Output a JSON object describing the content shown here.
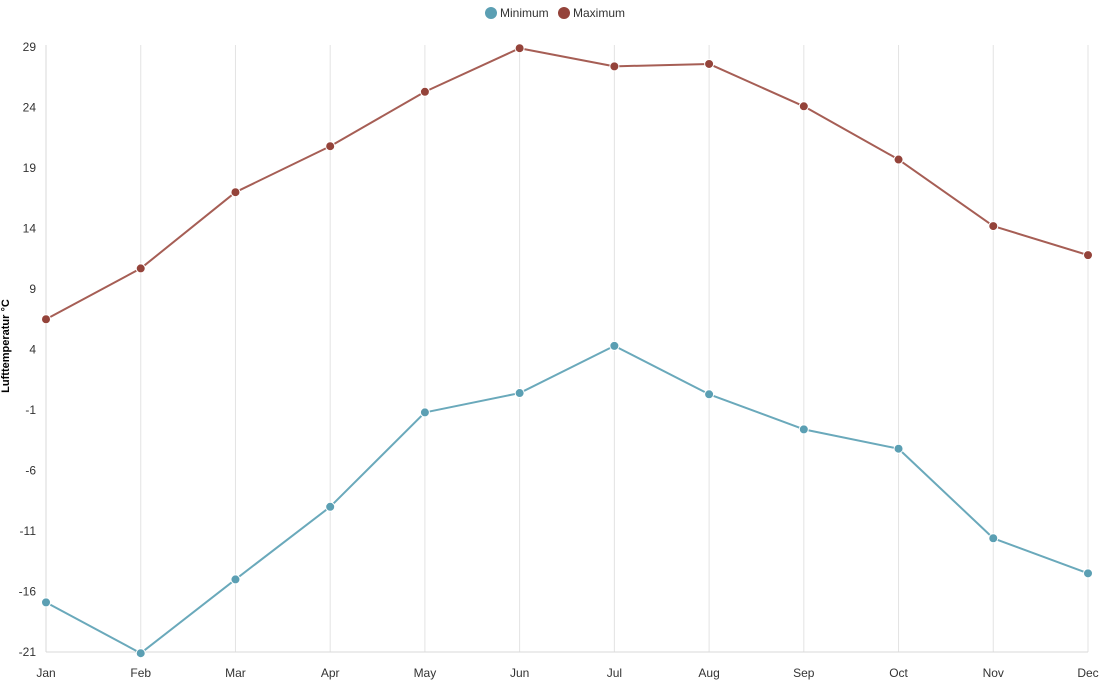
{
  "chart_data": {
    "type": "line",
    "title": "",
    "xlabel": "",
    "ylabel": "Lufttemperatur °C",
    "categories": [
      "Jan",
      "Feb",
      "Mar",
      "Apr",
      "May",
      "Jun",
      "Jul",
      "Aug",
      "Sep",
      "Oct",
      "Nov",
      "Dec"
    ],
    "y_ticks": [
      "29",
      "24",
      "19",
      "14",
      "9",
      "4",
      "-1",
      "-6",
      "-11",
      "-16",
      "-21"
    ],
    "ylim": [
      -21,
      29
    ],
    "grid": "vertical",
    "legend_position": "top-center",
    "series": [
      {
        "name": "Minimum",
        "color": "#6aa9bb",
        "marker_color": "#5b9fb3",
        "values": [
          -16.9,
          -21.1,
          -15.0,
          -9.0,
          -1.2,
          0.4,
          4.3,
          0.3,
          -2.6,
          -4.2,
          -11.6,
          -14.5
        ]
      },
      {
        "name": "Maximum",
        "color": "#a65e55",
        "marker_color": "#94433a",
        "values": [
          6.5,
          10.7,
          17.0,
          20.8,
          25.3,
          28.9,
          27.4,
          27.6,
          24.1,
          19.7,
          14.2,
          11.8
        ]
      }
    ]
  }
}
